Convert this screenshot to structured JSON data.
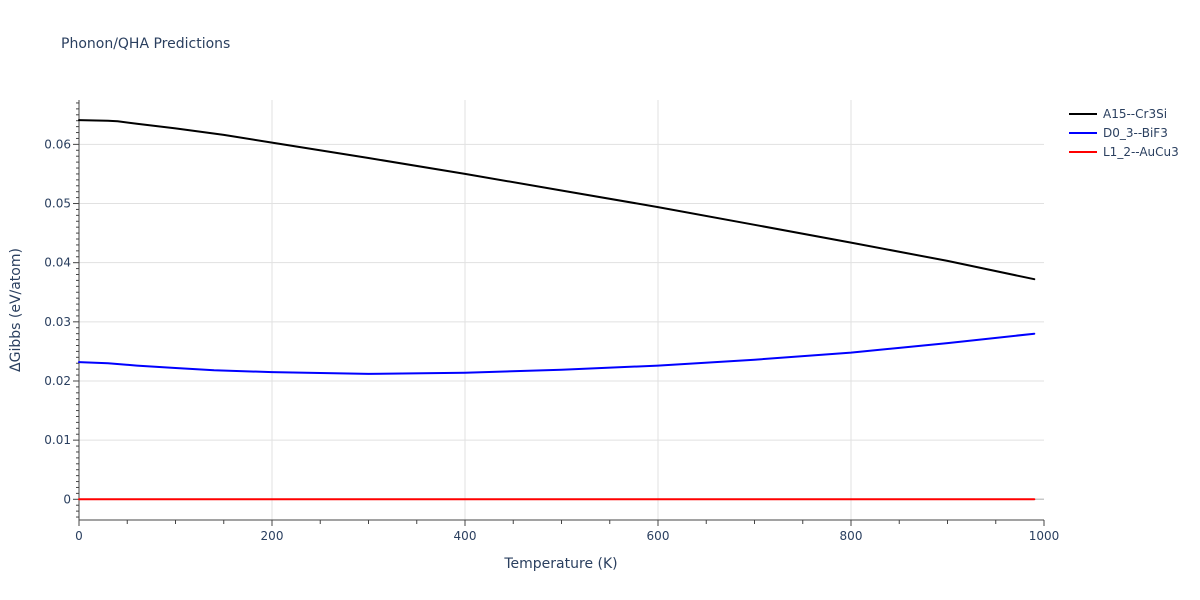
{
  "chart_data": {
    "type": "line",
    "title": "Phonon/QHA Predictions",
    "xlabel": "Temperature (K)",
    "ylabel": "ΔGibbs (eV/atom)",
    "xlim": [
      0,
      1000
    ],
    "ylim": [
      -0.0035,
      0.0675
    ],
    "xticks": [
      0,
      200,
      400,
      600,
      800,
      1000
    ],
    "xtick_labels": [
      "0",
      "200",
      "400",
      "600",
      "800",
      "1000"
    ],
    "yticks": [
      0,
      0.01,
      0.02,
      0.03,
      0.04,
      0.05,
      0.06
    ],
    "ytick_labels": [
      "0",
      "0.01",
      "0.02",
      "0.03",
      "0.04",
      "0.05",
      "0.06"
    ],
    "grid": true,
    "legend_position": "top-right",
    "series": [
      {
        "name": "A15--Cr3Si",
        "color": "#000000",
        "x": [
          0,
          30,
          40,
          60,
          100,
          150,
          200,
          300,
          400,
          500,
          600,
          700,
          800,
          900,
          990
        ],
        "y": [
          0.0641,
          0.064,
          0.0639,
          0.0635,
          0.0627,
          0.0616,
          0.0603,
          0.0577,
          0.055,
          0.0522,
          0.0494,
          0.0464,
          0.0434,
          0.0403,
          0.0372
        ]
      },
      {
        "name": "D0_3--BiF3",
        "color": "#0000ff",
        "x": [
          0,
          30,
          60,
          100,
          140,
          200,
          300,
          400,
          500,
          600,
          700,
          800,
          850,
          900,
          990
        ],
        "y": [
          0.0232,
          0.023,
          0.0226,
          0.0222,
          0.0218,
          0.0215,
          0.0212,
          0.0214,
          0.0219,
          0.0226,
          0.0236,
          0.0248,
          0.0256,
          0.0264,
          0.028
        ]
      },
      {
        "name": "L1_2--AuCu3",
        "color": "#ff0000",
        "x": [
          0,
          990
        ],
        "y": [
          0,
          0
        ]
      }
    ]
  }
}
